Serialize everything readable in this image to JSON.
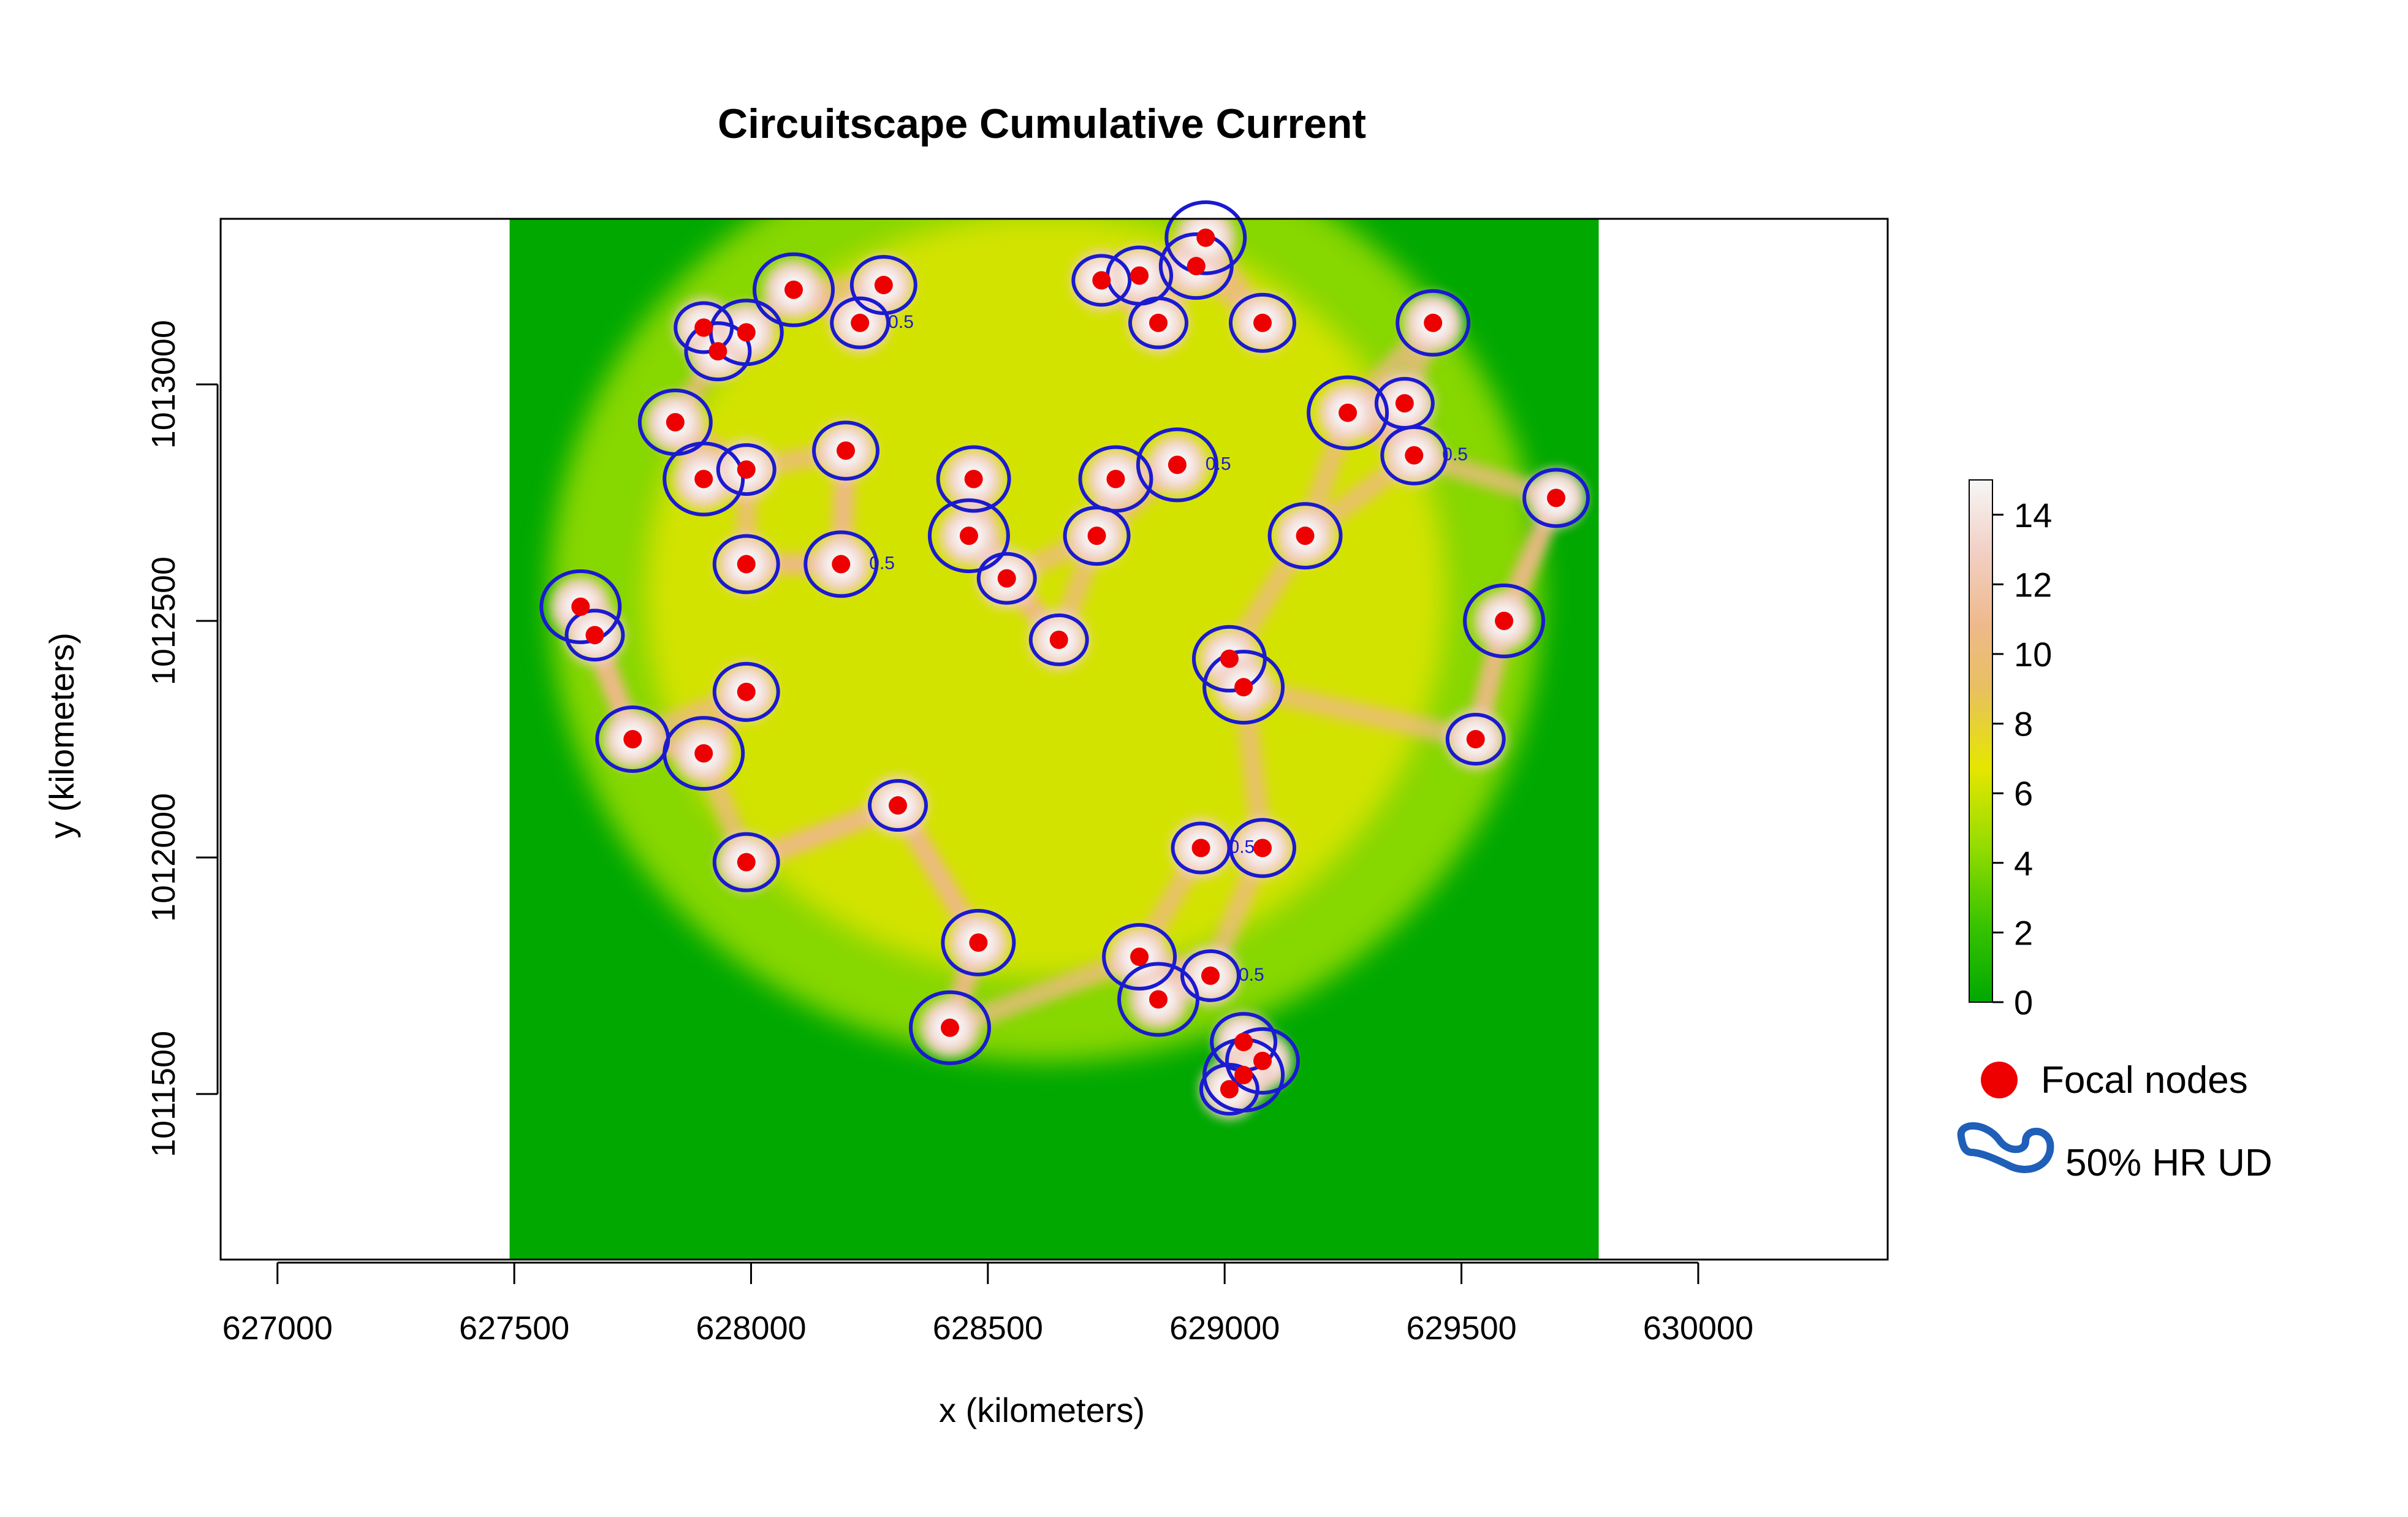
{
  "chart_data": {
    "type": "heatmap",
    "title": "Circuitscape Cumulative Current",
    "xlabel": "x (kilometers)",
    "ylabel": "y (kilometers)",
    "xlim": [
      626880,
      630400
    ],
    "ylim": [
      1011150,
      1013350
    ],
    "x_ticks": [
      627000,
      627500,
      628000,
      628500,
      629000,
      629500,
      630000
    ],
    "x_tick_labels": [
      "627000",
      "627500",
      "628000",
      "628500",
      "629000",
      "629500",
      "630000"
    ],
    "y_ticks": [
      1011500,
      1012000,
      1012500,
      1013000
    ],
    "y_tick_labels": [
      "1011500",
      "1012000",
      "1012500",
      "1013000"
    ],
    "raster_extent": {
      "xmin": 627490,
      "xmax": 629790,
      "ymin": 1011150,
      "ymax": 1013350
    },
    "colorbar": {
      "min": 0,
      "max": 15,
      "ticks": [
        0,
        2,
        4,
        6,
        8,
        10,
        12,
        14
      ],
      "tick_labels": [
        "0",
        "2",
        "4",
        "6",
        "8",
        "10",
        "12",
        "14"
      ],
      "colors": [
        "#00a800",
        "#3ac400",
        "#96dc00",
        "#e6e600",
        "#e8c060",
        "#eeb98a",
        "#f2cfc4",
        "#f6f6f6"
      ]
    },
    "focal_nodes": [
      [
        627900,
        1013120
      ],
      [
        627930,
        1013070
      ],
      [
        627990,
        1013110
      ],
      [
        628090,
        1013200
      ],
      [
        628230,
        1013130
      ],
      [
        628280,
        1013210
      ],
      [
        627840,
        1012920
      ],
      [
        627900,
        1012800
      ],
      [
        627990,
        1012820
      ],
      [
        628200,
        1012860
      ],
      [
        628470,
        1012800
      ],
      [
        628460,
        1012680
      ],
      [
        628540,
        1012590
      ],
      [
        627990,
        1012620
      ],
      [
        628190,
        1012620
      ],
      [
        627640,
        1012530
      ],
      [
        627670,
        1012470
      ],
      [
        627990,
        1012350
      ],
      [
        627750,
        1012250
      ],
      [
        627900,
        1012220
      ],
      [
        628310,
        1012110
      ],
      [
        627990,
        1011990
      ],
      [
        628480,
        1011820
      ],
      [
        628420,
        1011640
      ],
      [
        628650,
        1012460
      ],
      [
        628730,
        1012680
      ],
      [
        628770,
        1012800
      ],
      [
        628900,
        1012830
      ],
      [
        628740,
        1013220
      ],
      [
        628820,
        1013230
      ],
      [
        628940,
        1013250
      ],
      [
        628960,
        1013310
      ],
      [
        628860,
        1013130
      ],
      [
        629080,
        1013130
      ],
      [
        629170,
        1012680
      ],
      [
        629260,
        1012940
      ],
      [
        629380,
        1012960
      ],
      [
        629400,
        1012850
      ],
      [
        629440,
        1013130
      ],
      [
        629590,
        1012500
      ],
      [
        629530,
        1012250
      ],
      [
        629700,
        1012760
      ],
      [
        629010,
        1012420
      ],
      [
        629040,
        1012360
      ],
      [
        628950,
        1012020
      ],
      [
        629080,
        1012020
      ],
      [
        628820,
        1011790
      ],
      [
        628860,
        1011700
      ],
      [
        628970,
        1011750
      ],
      [
        629040,
        1011610
      ],
      [
        629080,
        1011570
      ],
      [
        629040,
        1011540
      ],
      [
        629010,
        1011510
      ]
    ],
    "contour_level": 0.5,
    "contour_label": "0.5",
    "legend": {
      "position": "right",
      "entries": [
        "Focal nodes",
        "50% HR UD"
      ],
      "node_color": "#ee0000",
      "contour_color": "#1f5fb8"
    },
    "grid": false
  }
}
